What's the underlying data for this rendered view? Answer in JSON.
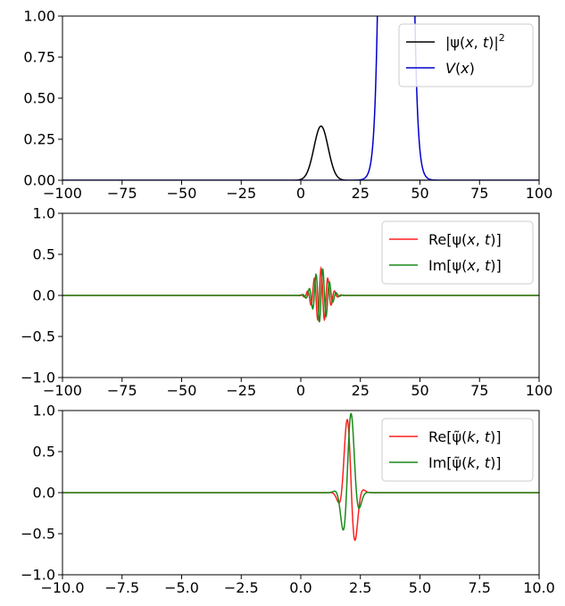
{
  "chart_data": [
    {
      "type": "line",
      "xlim": [
        -100,
        100
      ],
      "ylim": [
        0,
        1
      ],
      "x_ticks": [
        "−100",
        "−75",
        "−50",
        "−25",
        "0",
        "25",
        "50",
        "75",
        "100"
      ],
      "y_ticks": [
        "0.00",
        "0.25",
        "0.50",
        "0.75",
        "1.00"
      ],
      "grid": false,
      "legend_position": "top-right",
      "series": [
        {
          "name_parts": [
            "|ψ(",
            "x",
            ", ",
            "t",
            ")|",
            "2"
          ],
          "color": "#000000",
          "curve": "gaussian",
          "center": 8.5,
          "width": 4.2,
          "peak": 0.33
        },
        {
          "name_parts": [
            "V",
            "(",
            "x",
            ")"
          ],
          "color": "#0000cc",
          "curve": "barrier",
          "center": 40,
          "half_width": 5,
          "edge": 1.2,
          "peak": 1.0
        }
      ]
    },
    {
      "type": "line",
      "xlim": [
        -100,
        100
      ],
      "ylim": [
        -1,
        1
      ],
      "x_ticks": [
        "−100",
        "−75",
        "−50",
        "−25",
        "0",
        "25",
        "50",
        "75",
        "100"
      ],
      "y_ticks": [
        "−1.0",
        "−0.5",
        "0.0",
        "0.5",
        "1.0"
      ],
      "grid": false,
      "legend_position": "top-right",
      "series": [
        {
          "name_parts": [
            "Re[",
            "ψ(",
            "x",
            ", ",
            "t",
            ")]"
          ],
          "color": "#ff2020",
          "curve": "packet",
          "phase": "cos",
          "center": 8.5,
          "width": 4.2,
          "amp": 0.33,
          "k": 2.2
        },
        {
          "name_parts": [
            "Im[",
            "ψ(",
            "x",
            ", ",
            "t",
            ")]"
          ],
          "color": "#1a8a1a",
          "curve": "packet",
          "phase": "sin",
          "center": 8.5,
          "width": 4.2,
          "amp": 0.33,
          "k": 2.2
        }
      ]
    },
    {
      "type": "line",
      "xlim": [
        -10,
        10
      ],
      "ylim": [
        -1,
        1
      ],
      "x_ticks": [
        "−10.0",
        "−7.5",
        "−5.0",
        "−2.5",
        "0.0",
        "2.5",
        "5.0",
        "7.5",
        "10.0"
      ],
      "y_ticks": [
        "−1.0",
        "−0.5",
        "0.0",
        "0.5",
        "1.0"
      ],
      "grid": false,
      "legend_position": "top-right",
      "series": [
        {
          "name_parts": [
            "Re[",
            "ψ̃(",
            "k",
            ", ",
            "t",
            ")]"
          ],
          "color": "#ff2020",
          "curve": "packet",
          "phase": "cos",
          "center": 2.05,
          "width": 0.34,
          "amp": 1.0,
          "k": 7.5,
          "offset": 1.0
        },
        {
          "name_parts": [
            "Im[",
            "ψ̃(",
            "k",
            ", ",
            "t",
            ")]"
          ],
          "color": "#1a8a1a",
          "curve": "packet",
          "phase": "sin",
          "center": 2.05,
          "width": 0.34,
          "amp": 1.0,
          "k": 7.5,
          "offset": 1.0
        }
      ]
    }
  ]
}
